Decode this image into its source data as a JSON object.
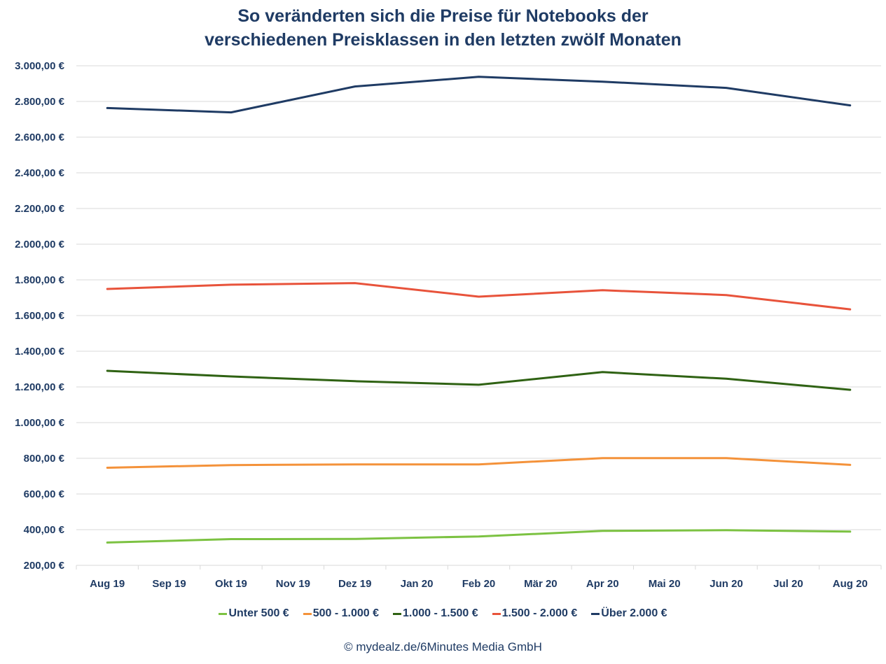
{
  "chart_data": {
    "type": "line",
    "title": "So veränderten sich die Preise für Notebooks der",
    "subtitle": "verschiedenen Preisklassen in den letzten zwölf Monaten",
    "categories": [
      "Aug 19",
      "Sep 19",
      "Okt 19",
      "Nov 19",
      "Dez 19",
      "Jan 20",
      "Feb 20",
      "Mär 20",
      "Apr 20",
      "Mai 20",
      "Jun 20",
      "Jul 20",
      "Aug 20"
    ],
    "ylim": [
      200,
      3000
    ],
    "yticks": [
      200,
      400,
      600,
      800,
      1000,
      1200,
      1400,
      1600,
      1800,
      2000,
      2200,
      2400,
      2600,
      2800,
      3000
    ],
    "ytick_labels": [
      "200,00 €",
      "400,00 €",
      "600,00 €",
      "800,00 €",
      "1.000,00 €",
      "1.200,00 €",
      "1.400,00 €",
      "1.600,00 €",
      "1.800,00 €",
      "2.000,00 €",
      "2.200,00 €",
      "2.400,00 €",
      "2.600,00 €",
      "2.800,00 €",
      "3.000,00 €"
    ],
    "grid": true,
    "legend_position": "bottom",
    "series": [
      {
        "name": "Unter 500 €",
        "color": "#7cc242",
        "values": [
          328,
          null,
          347,
          null,
          348,
          null,
          362,
          null,
          393,
          null,
          397,
          null,
          389
        ]
      },
      {
        "name": "500 - 1.000 €",
        "color": "#f4923a",
        "values": [
          747,
          null,
          762,
          null,
          766,
          null,
          766,
          null,
          801,
          null,
          801,
          null,
          763
        ]
      },
      {
        "name": "1.000 - 1.500 €",
        "color": "#2f6213",
        "values": [
          1290,
          null,
          1259,
          null,
          1232,
          null,
          1212,
          null,
          1283,
          null,
          1246,
          null,
          1184
        ]
      },
      {
        "name": "1.500 - 2.000 €",
        "color": "#e8533b",
        "values": [
          1749,
          null,
          1773,
          null,
          1782,
          null,
          1706,
          null,
          1742,
          null,
          1715,
          null,
          1635
        ]
      },
      {
        "name": "Über 2.000 €",
        "color": "#1f3b64",
        "values": [
          2763,
          null,
          2739,
          null,
          2884,
          null,
          2938,
          null,
          2911,
          null,
          2876,
          null,
          2778
        ]
      }
    ]
  },
  "footer": {
    "credit": "© mydealz.de/6Minutes Media GmbH"
  }
}
